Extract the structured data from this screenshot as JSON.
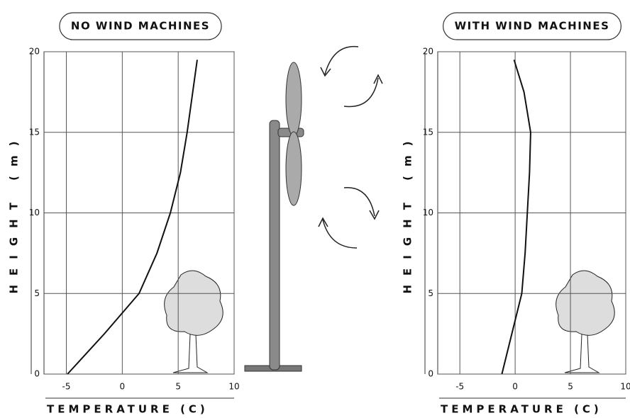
{
  "chart_data": [
    {
      "type": "line",
      "title": "NO WIND MACHINES",
      "xlabel": "TEMPERATURE (C)",
      "ylabel": "HEIGHT (m)",
      "x": [
        -4.9,
        -1.6,
        1.5,
        3.1,
        4.3,
        5.2,
        5.8,
        6.3,
        6.7
      ],
      "values": [
        0,
        2.5,
        5,
        7.5,
        10,
        12.5,
        15,
        17.5,
        19.5
      ],
      "color": "#111111",
      "xlim": [
        -7,
        10
      ],
      "ylim": [
        0,
        20
      ],
      "xticks": [
        -5,
        0,
        5,
        10
      ],
      "yticks": [
        0,
        5,
        10,
        15,
        20
      ],
      "grid": true
    },
    {
      "type": "line",
      "title": "WITH WIND MACHINES",
      "xlabel": "TEMPERATURE (C)",
      "ylabel": "HEIGHT (m)",
      "x": [
        -1.2,
        -0.3,
        0.6,
        0.9,
        1.1,
        1.3,
        1.4,
        0.8,
        -0.1
      ],
      "values": [
        0,
        2.5,
        5,
        7.5,
        10,
        12.5,
        15,
        17.5,
        19.5
      ],
      "color": "#111111",
      "xlim": [
        -7,
        10
      ],
      "ylim": [
        0,
        20
      ],
      "xticks": [
        -5,
        0,
        5,
        10
      ],
      "yticks": [
        0,
        5,
        10,
        15,
        20
      ],
      "grid": true
    }
  ]
}
